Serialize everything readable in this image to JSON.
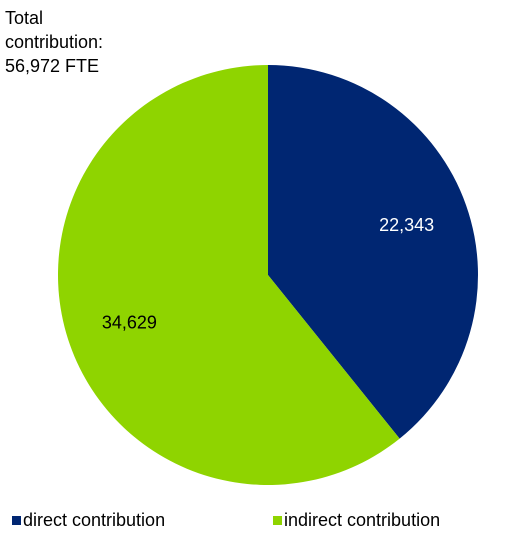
{
  "chart_data": {
    "type": "pie",
    "title": "Total contribution: 56,972 FTE",
    "categories": [
      "direct contribution",
      "indirect contribution"
    ],
    "values": [
      22343,
      34629
    ],
    "value_labels": [
      "22,343",
      "34,629"
    ],
    "colors": [
      "#002672",
      "#8fd400"
    ],
    "label_colors": [
      "#ffffff",
      "#000000"
    ]
  }
}
